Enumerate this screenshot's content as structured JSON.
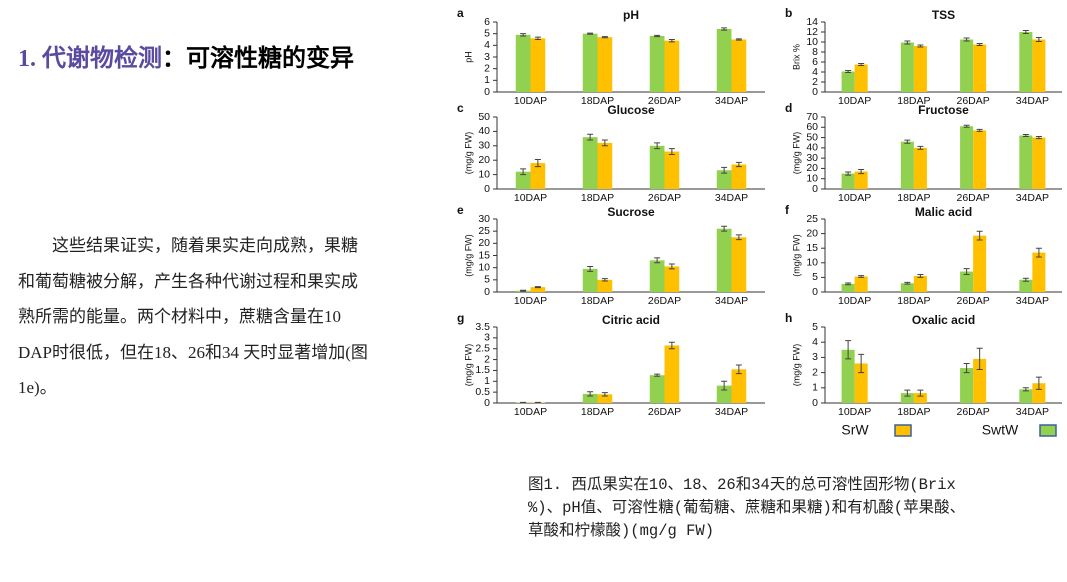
{
  "heading": {
    "number": "1. 代谢物检测",
    "rest": "：可溶性糖的变异"
  },
  "paragraph": "这些结果证实，随着果实走向成熟，果糖和葡萄糖被分解，产生各种代谢过程和果实成熟所需的能量。两个材料中，蔗糖含量在10 DAP时很低，但在18、26和34 天时显著增加(图1e)。",
  "caption": "图1. 西瓜果实在10、18、26和34天的总可溶性固形物(Brix %)、pH值、可溶性糖(葡萄糖、蔗糖和果糖)和有机酸(苹果酸、草酸和柠檬酸)(mg/g FW)",
  "chart_data": [
    {
      "type": "bar",
      "label": "a",
      "title": "pH",
      "ylabel": "pH",
      "categories": [
        "10DAP",
        "18DAP",
        "26DAP",
        "34DAP"
      ],
      "series": [
        {
          "name": "SwtW",
          "color": "#92d050",
          "values": [
            4.9,
            5.0,
            4.8,
            5.4
          ],
          "errors": [
            0.1,
            0.05,
            0.05,
            0.1
          ]
        },
        {
          "name": "SrW",
          "color": "#ffc000",
          "values": [
            4.6,
            4.7,
            4.4,
            4.5
          ],
          "errors": [
            0.1,
            0.05,
            0.1,
            0.05
          ]
        }
      ],
      "ylim": [
        0,
        6
      ],
      "yticks": [
        0,
        1,
        2,
        3,
        4,
        5,
        6
      ]
    },
    {
      "type": "bar",
      "label": "b",
      "title": "TSS",
      "ylabel": "Brix %",
      "categories": [
        "10DAP",
        "18DAP",
        "26DAP",
        "34DAP"
      ],
      "series": [
        {
          "name": "SwtW",
          "color": "#92d050",
          "values": [
            4.1,
            9.9,
            10.5,
            12.0
          ],
          "errors": [
            0.2,
            0.3,
            0.3,
            0.3
          ]
        },
        {
          "name": "SrW",
          "color": "#ffc000",
          "values": [
            5.5,
            9.2,
            9.5,
            10.5
          ],
          "errors": [
            0.2,
            0.2,
            0.2,
            0.4
          ]
        }
      ],
      "ylim": [
        0,
        14
      ],
      "yticks": [
        0,
        2,
        4,
        6,
        8,
        10,
        12,
        14
      ]
    },
    {
      "type": "bar",
      "label": "c",
      "title": "Glucose",
      "ylabel": "(mg/g FW)",
      "categories": [
        "10DAP",
        "18DAP",
        "26DAP",
        "34DAP"
      ],
      "series": [
        {
          "name": "SwtW",
          "color": "#92d050",
          "values": [
            12,
            36,
            30,
            13
          ],
          "errors": [
            2,
            2,
            2,
            2
          ]
        },
        {
          "name": "SrW",
          "color": "#ffc000",
          "values": [
            18,
            32,
            26,
            17
          ],
          "errors": [
            2.5,
            2,
            2,
            1.5
          ]
        }
      ],
      "ylim": [
        0,
        50
      ],
      "yticks": [
        0,
        10,
        20,
        30,
        40,
        50
      ]
    },
    {
      "type": "bar",
      "label": "d",
      "title": "Fructose",
      "ylabel": "(mg/g FW)",
      "categories": [
        "10DAP",
        "18DAP",
        "26DAP",
        "34DAP"
      ],
      "series": [
        {
          "name": "SwtW",
          "color": "#92d050",
          "values": [
            15,
            46,
            61,
            52
          ],
          "errors": [
            1.5,
            1.5,
            1,
            1
          ]
        },
        {
          "name": "SrW",
          "color": "#ffc000",
          "values": [
            17,
            40,
            57,
            50
          ],
          "errors": [
            2,
            1.5,
            1,
            1
          ]
        }
      ],
      "ylim": [
        0,
        70
      ],
      "yticks": [
        0,
        10,
        20,
        30,
        40,
        50,
        60,
        70
      ]
    },
    {
      "type": "bar",
      "label": "e",
      "title": "Sucrose",
      "ylabel": "(mg/g FW)",
      "categories": [
        "10DAP",
        "18DAP",
        "26DAP",
        "34DAP"
      ],
      "series": [
        {
          "name": "SwtW",
          "color": "#92d050",
          "values": [
            0.5,
            9.5,
            13,
            26
          ],
          "errors": [
            0.2,
            1,
            1,
            1
          ]
        },
        {
          "name": "SrW",
          "color": "#ffc000",
          "values": [
            2,
            5,
            10.5,
            22.5
          ],
          "errors": [
            0.2,
            0.5,
            1,
            1
          ]
        }
      ],
      "ylim": [
        0,
        30
      ],
      "yticks": [
        0,
        5,
        10,
        15,
        20,
        25,
        30
      ]
    },
    {
      "type": "bar",
      "label": "f",
      "title": "Malic acid",
      "ylabel": "(mg/g FW)",
      "categories": [
        "10DAP",
        "18DAP",
        "26DAP",
        "34DAP"
      ],
      "series": [
        {
          "name": "SwtW",
          "color": "#92d050",
          "values": [
            2.8,
            3,
            7,
            4.2
          ],
          "errors": [
            0.3,
            0.3,
            1,
            0.5
          ]
        },
        {
          "name": "SrW",
          "color": "#ffc000",
          "values": [
            5.3,
            5.5,
            19.3,
            13.5
          ],
          "errors": [
            0.3,
            0.5,
            1.5,
            1.5
          ]
        }
      ],
      "ylim": [
        0,
        25
      ],
      "yticks": [
        0,
        5,
        10,
        15,
        20,
        25
      ]
    },
    {
      "type": "bar",
      "label": "g",
      "title": "Citric acid",
      "ylabel": "(mg/g FW)",
      "categories": [
        "10DAP",
        "18DAP",
        "26DAP",
        "34DAP"
      ],
      "series": [
        {
          "name": "SwtW",
          "color": "#92d050",
          "values": [
            0.02,
            0.42,
            1.28,
            0.8
          ],
          "errors": [
            0.01,
            0.1,
            0.05,
            0.2
          ]
        },
        {
          "name": "SrW",
          "color": "#ffc000",
          "values": [
            0.02,
            0.4,
            2.65,
            1.55
          ],
          "errors": [
            0.01,
            0.08,
            0.15,
            0.2
          ]
        }
      ],
      "ylim": [
        0,
        3.5
      ],
      "yticks": [
        0,
        0.5,
        1,
        1.5,
        2,
        2.5,
        3,
        3.5
      ]
    },
    {
      "type": "bar",
      "label": "h",
      "title": "Oxalic acid",
      "ylabel": "(mg/g FW)",
      "categories": [
        "10DAP",
        "18DAP",
        "26DAP",
        "34DAP"
      ],
      "series": [
        {
          "name": "SwtW",
          "color": "#92d050",
          "values": [
            3.5,
            0.65,
            2.3,
            0.9
          ],
          "errors": [
            0.6,
            0.2,
            0.3,
            0.1
          ]
        },
        {
          "name": "SrW",
          "color": "#ffc000",
          "values": [
            2.6,
            0.65,
            2.9,
            1.3
          ],
          "errors": [
            0.6,
            0.2,
            0.7,
            0.4
          ]
        }
      ],
      "ylim": [
        0,
        5
      ],
      "yticks": [
        0,
        1,
        2,
        3,
        4,
        5
      ]
    }
  ]
}
